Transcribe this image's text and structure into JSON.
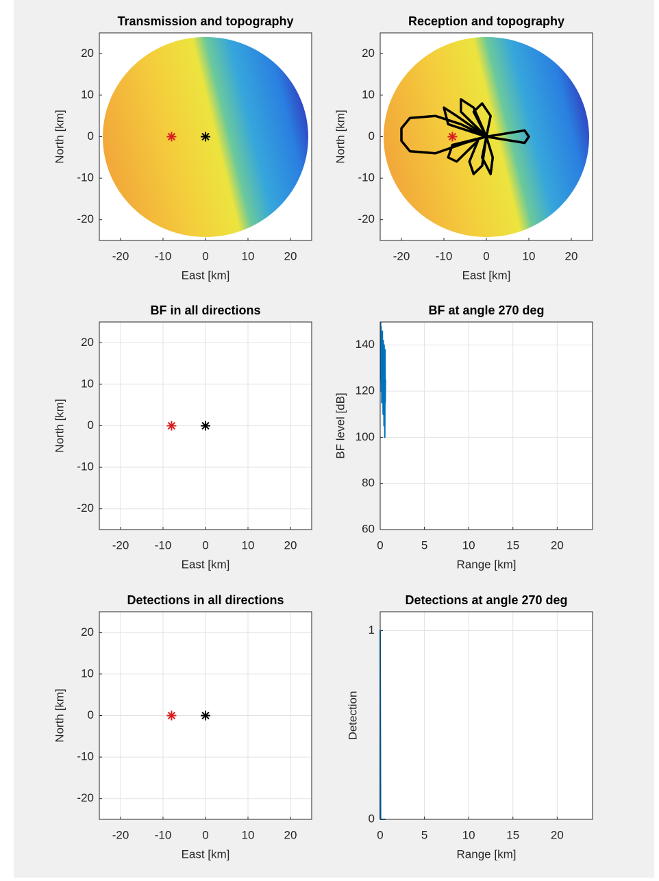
{
  "chart_data": [
    {
      "type": "scatter",
      "title": "Transmission and topography",
      "xlabel": "East [km]",
      "ylabel": "North [km]",
      "xlim": [
        -25,
        25
      ],
      "ylim": [
        -25,
        25
      ],
      "xticks": [
        -20,
        -10,
        0,
        10,
        20
      ],
      "yticks": [
        -20,
        -10,
        0,
        10,
        20
      ],
      "grid": false,
      "series": [
        {
          "marker": "*",
          "color": "#d81e1e",
          "x": [
            -8
          ],
          "values": [
            0
          ]
        },
        {
          "marker": "*",
          "color": "#000000",
          "x": [
            0
          ],
          "values": [
            0
          ]
        }
      ]
    },
    {
      "type": "scatter",
      "title": "Reception and topography",
      "xlabel": "East [km]",
      "ylabel": "North [km]",
      "xlim": [
        -25,
        25
      ],
      "ylim": [
        -25,
        25
      ],
      "xticks": [
        -20,
        -10,
        0,
        10,
        20
      ],
      "yticks": [
        -20,
        -10,
        0,
        10,
        20
      ],
      "grid": false,
      "series": [
        {
          "marker": "*",
          "color": "#d81e1e",
          "x": [
            -8
          ],
          "values": [
            0
          ]
        },
        {
          "marker": "none",
          "color": "#000000",
          "x": [
            0,
            -6,
            -12,
            -18,
            -20,
            -20,
            -18,
            -12,
            -5,
            0,
            -8,
            -9,
            -7,
            -2,
            -4,
            -3,
            -1,
            0,
            -1,
            1,
            1.5,
            0,
            9,
            10,
            9,
            0,
            1,
            -1,
            -3,
            0,
            -3,
            -6,
            -6,
            0,
            -7,
            -10,
            -9,
            0
          ],
          "values": [
            0,
            3,
            5,
            4.5,
            2,
            -1,
            -3.5,
            -4,
            -1.5,
            0,
            -2,
            -5,
            -6,
            -1,
            -6,
            -9,
            -7,
            0,
            -5,
            -9,
            -5,
            0,
            -1.5,
            0,
            1.5,
            0,
            5,
            8,
            6,
            0,
            7,
            9,
            6,
            0,
            5,
            7,
            3,
            0
          ]
        }
      ]
    },
    {
      "type": "scatter",
      "title": "BF in all directions",
      "xlabel": "East [km]",
      "ylabel": "North [km]",
      "xlim": [
        -25,
        25
      ],
      "ylim": [
        -25,
        25
      ],
      "xticks": [
        -20,
        -10,
        0,
        10,
        20
      ],
      "yticks": [
        -20,
        -10,
        0,
        10,
        20
      ],
      "grid": true,
      "series": [
        {
          "marker": "*",
          "color": "#d81e1e",
          "x": [
            -8
          ],
          "values": [
            0
          ]
        },
        {
          "marker": "*",
          "color": "#000000",
          "x": [
            0
          ],
          "values": [
            0
          ]
        }
      ]
    },
    {
      "type": "line",
      "title": "BF at angle 270 deg",
      "xlabel": "Range [km]",
      "ylabel": "BF level [dB]",
      "xlim": [
        0,
        24
      ],
      "ylim": [
        60,
        150
      ],
      "xticks": [
        0,
        5,
        10,
        15,
        20
      ],
      "yticks": [
        60,
        80,
        100,
        120,
        140
      ],
      "grid": true,
      "series": [
        {
          "marker": "none",
          "color": "#0072bd",
          "x": [
            0.05,
            0.08,
            0.1,
            0.13,
            0.15,
            0.18,
            0.2,
            0.23,
            0.25,
            0.28,
            0.3,
            0.33,
            0.35,
            0.38,
            0.4,
            0.43,
            0.45,
            0.48,
            0.5,
            0.52,
            0.55,
            0.57,
            0.6
          ],
          "values": [
            150,
            125,
            148,
            120,
            145,
            115,
            140,
            122,
            146,
            118,
            138,
            110,
            142,
            125,
            135,
            105,
            140,
            120,
            130,
            100,
            138,
            115,
            125
          ]
        }
      ]
    },
    {
      "type": "scatter",
      "title": "Detections in all directions",
      "xlabel": "East [km]",
      "ylabel": "North [km]",
      "xlim": [
        -25,
        25
      ],
      "ylim": [
        -25,
        25
      ],
      "xticks": [
        -20,
        -10,
        0,
        10,
        20
      ],
      "yticks": [
        -20,
        -10,
        0,
        10,
        20
      ],
      "grid": true,
      "series": [
        {
          "marker": "*",
          "color": "#d81e1e",
          "x": [
            -8
          ],
          "values": [
            0
          ]
        },
        {
          "marker": "*",
          "color": "#000000",
          "x": [
            0
          ],
          "values": [
            0
          ]
        }
      ]
    },
    {
      "type": "line",
      "title": "Detections at angle 270 deg",
      "xlabel": "Range [km]",
      "ylabel": "Detection",
      "xlim": [
        0,
        24
      ],
      "ylim": [
        0,
        1.1
      ],
      "xticks": [
        0,
        5,
        10,
        15,
        20
      ],
      "yticks": [
        0,
        1
      ],
      "grid": true,
      "series": [
        {
          "marker": "none",
          "color": "#0072bd",
          "x": [
            0,
            0,
            0.05,
            0.6
          ],
          "values": [
            0,
            1,
            0,
            0
          ]
        }
      ]
    }
  ]
}
